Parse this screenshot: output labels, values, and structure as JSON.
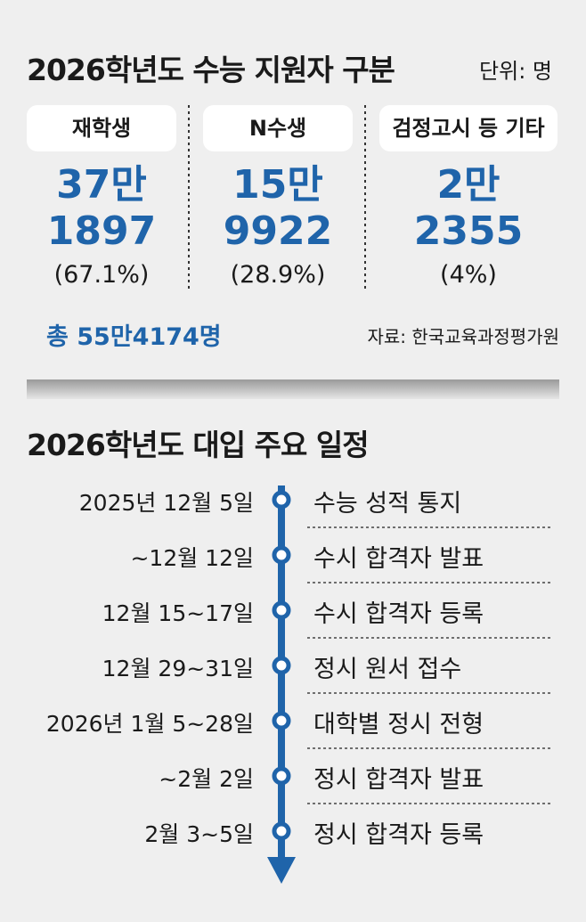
{
  "title1": "2026학년도 수능 지원자 구분",
  "unit": "단위: 명",
  "groups": [
    {
      "label": "재학생",
      "count_line1": "37만",
      "count_line2": "1897",
      "share": "(67.1%)"
    },
    {
      "label": "N수생",
      "count_line1": "15만",
      "count_line2": "9922",
      "share": "(28.9%)"
    },
    {
      "label": "검정고시 등 기타",
      "count_line1": "2만",
      "count_line2": "2355",
      "share": "(4%)"
    }
  ],
  "total": "총 55만4174명",
  "source": "자료: 한국교육과정평가원",
  "title2": "2026학년도 대입 주요 일정",
  "schedule": [
    {
      "date": "2025년 12월 5일",
      "event": "수능 성적 통지"
    },
    {
      "date": "~12월 12일",
      "event": "수시 합격자 발표"
    },
    {
      "date": "12월 15~17일",
      "event": "수시 합격자 등록"
    },
    {
      "date": "12월 29~31일",
      "event": "정시 원서 접수"
    },
    {
      "date": "2026년 1월 5~28일",
      "event": "대학별 정시 전형"
    },
    {
      "date": "~2월 2일",
      "event": "정시 합격자 발표"
    },
    {
      "date": "2월 3~5일",
      "event": "정시 합격자 등록"
    }
  ]
}
